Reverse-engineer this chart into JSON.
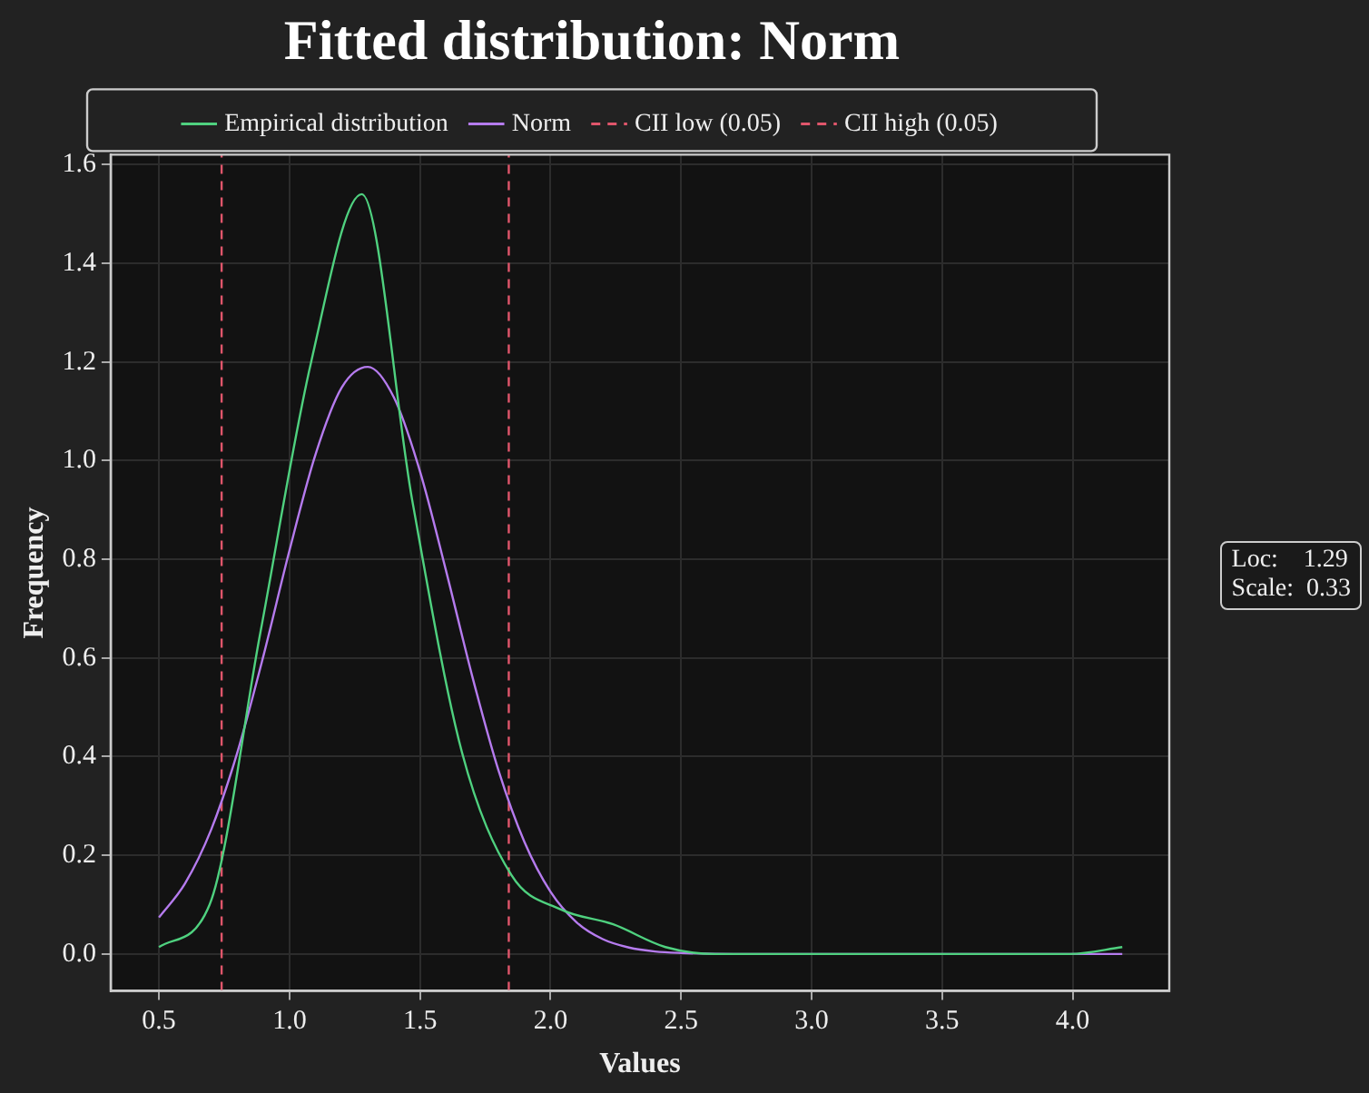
{
  "chart_data": {
    "type": "line",
    "title": "Fitted distribution: Norm",
    "xlabel": "Values",
    "ylabel": "Frequency",
    "series": [
      {
        "name": "Empirical distribution",
        "color": "#4fd17f",
        "x": [
          0.5,
          0.694,
          0.888,
          1.083,
          1.277,
          1.47,
          1.66,
          1.85,
          2.04,
          2.24,
          2.44,
          2.63,
          2.83,
          3.02,
          3.21,
          3.41,
          3.6,
          3.8,
          3.99,
          4.19
        ],
        "values": [
          0.014,
          0.1,
          0.65,
          1.2,
          1.54,
          0.92,
          0.41,
          0.16,
          0.09,
          0.06,
          0.014,
          0,
          0,
          0,
          0,
          0,
          0,
          0,
          0,
          0.014
        ]
      },
      {
        "name": "Norm",
        "color": "#b57bee",
        "x": [
          0.5,
          0.6,
          0.7,
          0.8,
          0.9,
          1.0,
          1.1,
          1.2,
          1.3,
          1.4,
          1.5,
          1.6,
          1.7,
          1.8,
          1.9,
          2.0,
          2.1,
          2.2,
          2.3,
          2.4,
          2.5,
          2.7,
          3.0,
          3.5,
          4.0,
          4.19
        ],
        "values": [
          0.074,
          0.143,
          0.252,
          0.408,
          0.604,
          0.818,
          1.013,
          1.148,
          1.19,
          1.128,
          0.978,
          0.776,
          0.563,
          0.373,
          0.227,
          0.126,
          0.064,
          0.03,
          0.013,
          0.005,
          0.002,
          0,
          0,
          0,
          0,
          0
        ]
      }
    ],
    "ref_lines": [
      {
        "axis": "x",
        "value": 0.74,
        "label": "CII low (0.05)",
        "color": "#e0566b",
        "line_style": "dashed"
      },
      {
        "axis": "x",
        "value": 1.84,
        "label": "CII high (0.05)",
        "color": "#e0566b",
        "line_style": "dashed"
      }
    ],
    "xlim": [
      0.315,
      4.37
    ],
    "xticks": [
      0.5,
      {
        "value": 1,
        "label": "1.0"
      },
      1.5,
      {
        "value": 2,
        "label": "2.0"
      },
      2.5,
      {
        "value": 3,
        "label": "3.0"
      },
      3.5,
      {
        "value": 4,
        "label": "4.0"
      }
    ],
    "ylim": [
      -0.075,
      1.62
    ],
    "yticks": [
      {
        "value": 0,
        "label": "0.0"
      },
      0.2,
      0.4,
      0.6,
      0.8,
      {
        "value": 1,
        "label": "1.0"
      },
      1.2,
      1.4,
      1.6
    ],
    "grid": true,
    "legend": "top",
    "marker": "none",
    "line_style": "solid",
    "annotations": [
      "Loc:    1.29",
      "Scale:  0.33"
    ]
  }
}
